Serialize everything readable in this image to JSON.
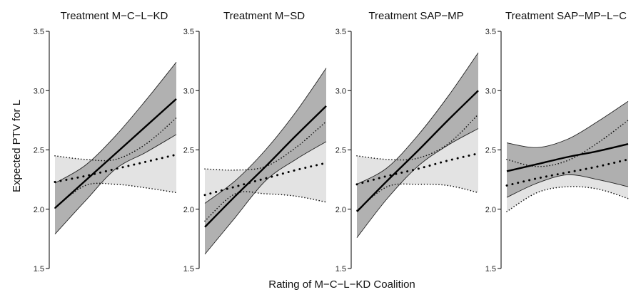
{
  "figure": {
    "xlabel": "Rating of M−C−L−KD Coalition",
    "ylabel": "Expected PTV for L"
  },
  "chart_data": {
    "type": "line",
    "ylim": [
      1.5,
      3.5
    ],
    "yticks": [
      1.5,
      2.0,
      2.5,
      3.0,
      3.5
    ],
    "ytick_labels": [
      "1.5",
      "2.0",
      "2.5",
      "3.0",
      "3.5"
    ],
    "xlim": [
      0,
      10
    ],
    "grid": false,
    "x": [
      0,
      2.5,
      5,
      7.5,
      10
    ],
    "colors": {
      "ci_dark": "#a9a9a9",
      "ci_light": "#e3e3e3",
      "line": "#000000"
    },
    "panels": [
      {
        "title": "Treatment M−C−L−KD",
        "treated": {
          "fit": [
            2.01,
            2.24,
            2.47,
            2.7,
            2.93
          ],
          "lower": [
            1.79,
            2.07,
            2.34,
            2.48,
            2.63
          ],
          "upper": [
            2.22,
            2.37,
            2.62,
            2.92,
            3.24
          ]
        },
        "control": {
          "fit": [
            2.23,
            2.28,
            2.34,
            2.4,
            2.46
          ],
          "lower": [
            2.01,
            2.2,
            2.21,
            2.18,
            2.14
          ],
          "upper": [
            2.45,
            2.42,
            2.42,
            2.55,
            2.77
          ]
        }
      },
      {
        "title": "Treatment M−SD",
        "treated": {
          "fit": [
            1.85,
            2.11,
            2.36,
            2.62,
            2.87
          ],
          "lower": [
            1.62,
            1.93,
            2.24,
            2.42,
            2.57
          ],
          "upper": [
            2.05,
            2.24,
            2.5,
            2.82,
            3.19
          ]
        },
        "control": {
          "fit": [
            2.12,
            2.19,
            2.26,
            2.33,
            2.39
          ],
          "lower": [
            1.9,
            2.13,
            2.13,
            2.11,
            2.06
          ],
          "upper": [
            2.34,
            2.33,
            2.36,
            2.52,
            2.74
          ]
        }
      },
      {
        "title": "Treatment SAP−MP",
        "treated": {
          "fit": [
            1.98,
            2.24,
            2.49,
            2.75,
            3.0
          ],
          "lower": [
            1.76,
            2.09,
            2.36,
            2.54,
            2.68
          ],
          "upper": [
            2.21,
            2.35,
            2.62,
            2.95,
            3.32
          ]
        },
        "control": {
          "fit": [
            2.21,
            2.28,
            2.34,
            2.41,
            2.47
          ],
          "lower": [
            1.99,
            2.19,
            2.21,
            2.2,
            2.14
          ],
          "upper": [
            2.45,
            2.42,
            2.43,
            2.55,
            2.8
          ]
        }
      },
      {
        "title": "Treatment SAP−MP−L−C",
        "treated": {
          "fit": [
            2.32,
            2.38,
            2.44,
            2.49,
            2.55
          ],
          "lower": [
            2.1,
            2.22,
            2.29,
            2.25,
            2.19
          ],
          "upper": [
            2.56,
            2.52,
            2.59,
            2.74,
            2.91
          ]
        },
        "control": {
          "fit": [
            2.2,
            2.26,
            2.31,
            2.36,
            2.42
          ],
          "lower": [
            1.98,
            2.14,
            2.19,
            2.17,
            2.09
          ],
          "upper": [
            2.42,
            2.36,
            2.41,
            2.56,
            2.75
          ]
        }
      }
    ]
  }
}
